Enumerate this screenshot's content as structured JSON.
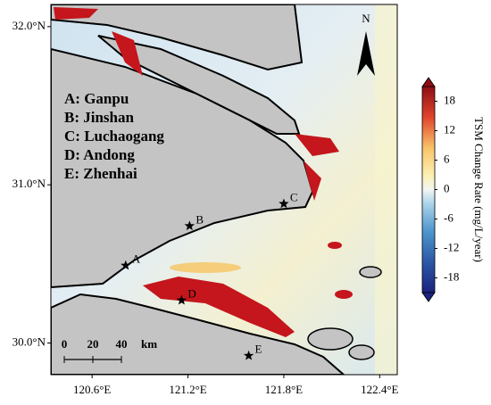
{
  "map": {
    "xlim": [
      120.342,
      122.51
    ],
    "ylim": [
      29.8,
      32.14
    ],
    "xticks": [
      {
        "value": 120.6,
        "label": "120.6°E"
      },
      {
        "value": 121.2,
        "label": "121.2°E"
      },
      {
        "value": 121.8,
        "label": "121.8°E"
      },
      {
        "value": 122.4,
        "label": "122.4°E"
      }
    ],
    "yticks": [
      {
        "value": 32.0,
        "label": "32.0°N"
      },
      {
        "value": 31.0,
        "label": "31.0°N"
      },
      {
        "value": 30.0,
        "label": "30.0°N"
      }
    ],
    "north_label": "N",
    "legend": [
      "A: Ganpu",
      "B: Jinshan",
      "C: Luchaogang",
      "D: Andong",
      "E: Zhenhai"
    ],
    "stations": [
      {
        "code": "A",
        "lon": 120.81,
        "lat": 30.49
      },
      {
        "code": "B",
        "lon": 121.21,
        "lat": 30.74
      },
      {
        "code": "C",
        "lon": 121.8,
        "lat": 30.88
      },
      {
        "code": "D",
        "lon": 121.16,
        "lat": 30.27
      },
      {
        "code": "E",
        "lon": 121.58,
        "lat": 29.92
      }
    ],
    "scale_bar": {
      "ticks": [
        0,
        20,
        40
      ],
      "unit": "km"
    }
  },
  "colorbar": {
    "title": "TSM Change Rate (mg/L/year)",
    "lim": [
      -21,
      21
    ],
    "ticks": [
      18,
      12,
      6,
      0,
      -6,
      -12,
      -18
    ]
  }
}
